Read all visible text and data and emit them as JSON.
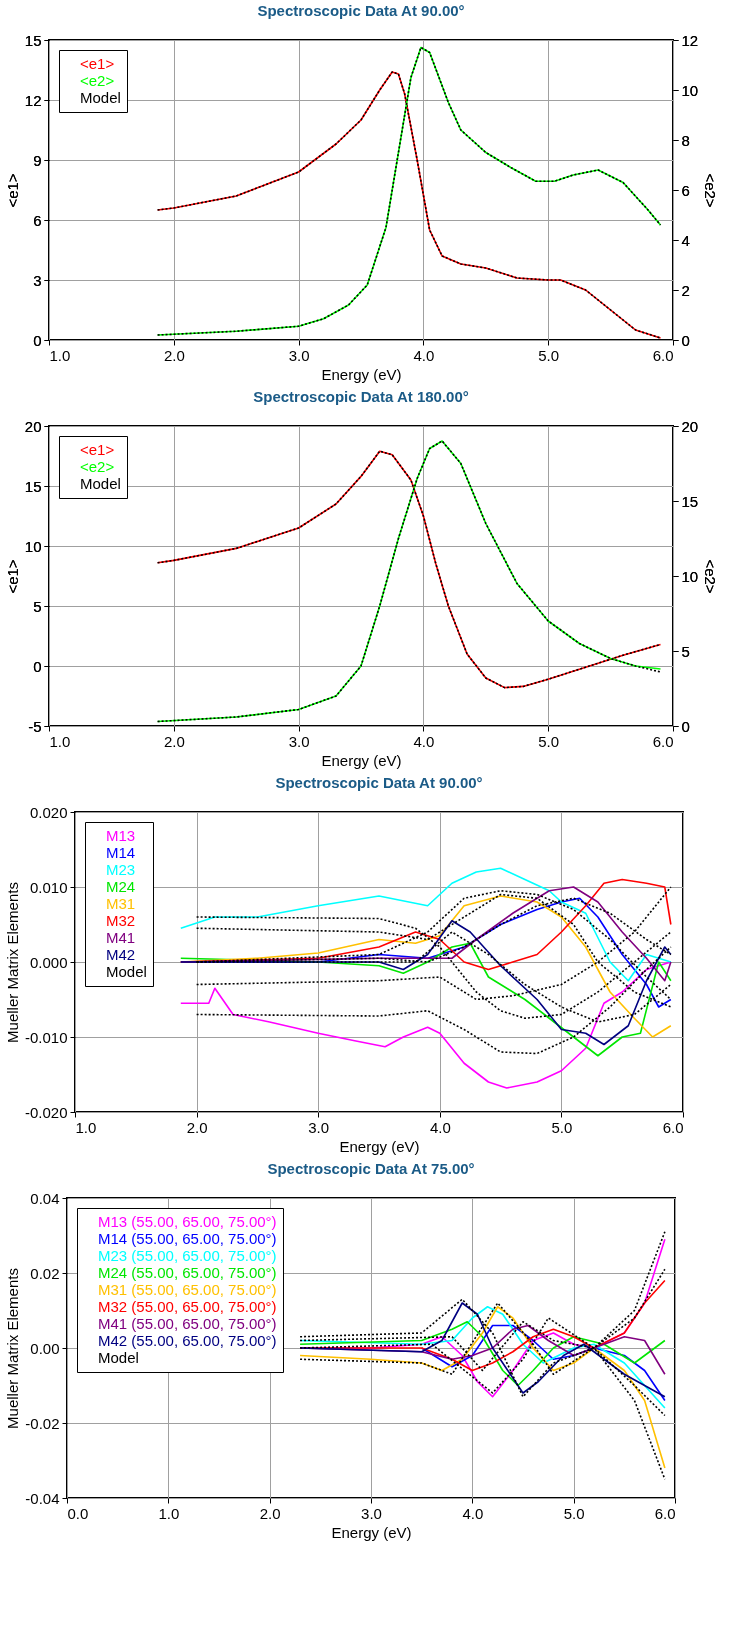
{
  "chart_data": [
    {
      "type": "line",
      "title": "Spectroscopic Data At 90.00°",
      "xlabel": "Energy (eV)",
      "ylabel": "<e1>",
      "y2label": "<e2>",
      "xlim": [
        1,
        6
      ],
      "xticks": [
        {
          "value": 1,
          "label": "1.0"
        },
        {
          "value": 2,
          "label": "2.0"
        },
        {
          "value": 3,
          "label": "3.0"
        },
        {
          "value": 4,
          "label": "4.0"
        },
        {
          "value": 5,
          "label": "5.0"
        },
        {
          "value": 6,
          "label": "6.0"
        }
      ],
      "ylim": [
        0,
        15
      ],
      "yticks": [
        0,
        3,
        6,
        9,
        12,
        15
      ],
      "y2lim": [
        0,
        12
      ],
      "y2ticks": [
        0,
        2,
        4,
        6,
        8,
        10,
        12
      ],
      "grid": true,
      "legend": "top left",
      "series": [
        {
          "name": "<e1>",
          "color": "#ff0000",
          "axis": "y",
          "line_style": "solid",
          "x": [
            1.87,
            2.0,
            2.5,
            3.0,
            3.3,
            3.5,
            3.65,
            3.75,
            3.8,
            3.85,
            3.95,
            4.05,
            4.15,
            4.3,
            4.5,
            4.75,
            5.0,
            5.1,
            5.3,
            5.5,
            5.7,
            5.9
          ],
          "values": [
            6.5,
            6.6,
            7.2,
            8.4,
            9.8,
            11.0,
            12.5,
            13.4,
            13.3,
            12.3,
            9.0,
            5.5,
            4.2,
            3.8,
            3.6,
            3.1,
            3.0,
            3.0,
            2.5,
            1.5,
            0.5,
            0.1
          ]
        },
        {
          "name": "<e2>",
          "color": "#00ff00",
          "axis": "y2",
          "line_style": "solid",
          "x": [
            1.87,
            2.5,
            3.0,
            3.2,
            3.4,
            3.55,
            3.7,
            3.8,
            3.9,
            3.98,
            4.05,
            4.2,
            4.3,
            4.5,
            4.7,
            4.9,
            5.05,
            5.2,
            5.4,
            5.6,
            5.8,
            5.9
          ],
          "values": [
            0.2,
            0.35,
            0.55,
            0.85,
            1.4,
            2.2,
            4.5,
            7.5,
            10.5,
            11.7,
            11.5,
            9.5,
            8.4,
            7.5,
            6.9,
            6.35,
            6.35,
            6.6,
            6.8,
            6.3,
            5.2,
            4.6
          ]
        },
        {
          "name": "Model",
          "color": "#000000",
          "axis": "y",
          "line_style": "dotted",
          "x": [
            1.87,
            2.0,
            2.5,
            3.0,
            3.3,
            3.5,
            3.65,
            3.75,
            3.8,
            3.85,
            3.95,
            4.05,
            4.15,
            4.3,
            4.5,
            4.75,
            5.0,
            5.1,
            5.3,
            5.5,
            5.7,
            5.9
          ],
          "values": [
            6.5,
            6.6,
            7.2,
            8.4,
            9.8,
            11.0,
            12.5,
            13.4,
            13.3,
            12.3,
            9.0,
            5.5,
            4.2,
            3.8,
            3.6,
            3.1,
            3.0,
            3.0,
            2.5,
            1.5,
            0.5,
            0.1
          ]
        },
        {
          "color": "#000000",
          "axis": "y2",
          "line_style": "dotted",
          "x": [
            1.87,
            2.5,
            3.0,
            3.2,
            3.4,
            3.55,
            3.7,
            3.8,
            3.9,
            3.98,
            4.05,
            4.2,
            4.3,
            4.5,
            4.7,
            4.9,
            5.05,
            5.2,
            5.4,
            5.6,
            5.8,
            5.9
          ],
          "values": [
            0.2,
            0.35,
            0.55,
            0.85,
            1.4,
            2.2,
            4.5,
            7.5,
            10.5,
            11.7,
            11.5,
            9.5,
            8.4,
            7.5,
            6.9,
            6.35,
            6.35,
            6.6,
            6.8,
            6.3,
            5.2,
            4.6
          ]
        }
      ]
    },
    {
      "type": "line",
      "title": "Spectroscopic Data At 180.00°",
      "xlabel": "Energy (eV)",
      "ylabel": "<e1>",
      "y2label": "<e2>",
      "xlim": [
        1,
        6
      ],
      "xticks": [
        {
          "value": 1,
          "label": "1.0"
        },
        {
          "value": 2,
          "label": "2.0"
        },
        {
          "value": 3,
          "label": "3.0"
        },
        {
          "value": 4,
          "label": "4.0"
        },
        {
          "value": 5,
          "label": "5.0"
        },
        {
          "value": 6,
          "label": "6.0"
        }
      ],
      "ylim": [
        -5,
        20
      ],
      "yticks": [
        -5,
        0,
        5,
        10,
        15,
        20
      ],
      "y2lim": [
        0,
        20
      ],
      "y2ticks": [
        0,
        5,
        10,
        15,
        20
      ],
      "grid": true,
      "legend": "top left",
      "series": [
        {
          "name": "<e1>",
          "color": "#ff0000",
          "axis": "y",
          "line_style": "solid",
          "x": [
            1.87,
            2.0,
            2.5,
            3.0,
            3.3,
            3.5,
            3.65,
            3.75,
            3.9,
            4.0,
            4.1,
            4.2,
            4.35,
            4.5,
            4.65,
            4.8,
            5.0,
            5.3,
            5.6,
            5.9
          ],
          "values": [
            8.6,
            8.8,
            9.8,
            11.5,
            13.5,
            15.8,
            17.9,
            17.6,
            15.5,
            12.5,
            8.5,
            5.0,
            1.0,
            -1.0,
            -1.8,
            -1.7,
            -1.1,
            -0.1,
            0.9,
            1.8
          ]
        },
        {
          "name": "<e2>",
          "color": "#00ff00",
          "axis": "y2",
          "line_style": "solid",
          "x": [
            1.87,
            2.5,
            3.0,
            3.3,
            3.5,
            3.65,
            3.8,
            3.95,
            4.05,
            4.15,
            4.3,
            4.5,
            4.75,
            5.0,
            5.25,
            5.5,
            5.7,
            5.9
          ],
          "values": [
            0.3,
            0.6,
            1.1,
            2.0,
            4.0,
            8.0,
            12.5,
            16.5,
            18.5,
            19.0,
            17.5,
            13.5,
            9.5,
            7.0,
            5.5,
            4.5,
            4.0,
            3.8
          ]
        },
        {
          "name": "Model",
          "color": "#000000",
          "axis": "y",
          "line_style": "dotted",
          "x": [
            1.87,
            2.0,
            2.5,
            3.0,
            3.3,
            3.5,
            3.65,
            3.75,
            3.9,
            4.0,
            4.1,
            4.2,
            4.35,
            4.5,
            4.65,
            4.8,
            5.0,
            5.3,
            5.6,
            5.9
          ],
          "values": [
            8.6,
            8.8,
            9.8,
            11.5,
            13.5,
            15.8,
            17.9,
            17.6,
            15.5,
            12.5,
            8.5,
            5.0,
            1.0,
            -1.0,
            -1.8,
            -1.7,
            -1.1,
            -0.1,
            0.9,
            1.8
          ]
        },
        {
          "color": "#000000",
          "axis": "y2",
          "line_style": "dotted",
          "x": [
            1.87,
            2.5,
            3.0,
            3.3,
            3.5,
            3.65,
            3.8,
            3.95,
            4.05,
            4.15,
            4.3,
            4.5,
            4.75,
            5.0,
            5.25,
            5.5,
            5.7,
            5.9
          ],
          "values": [
            0.3,
            0.6,
            1.1,
            2.0,
            4.0,
            8.0,
            12.5,
            16.5,
            18.5,
            19.0,
            17.5,
            13.5,
            9.5,
            7.0,
            5.5,
            4.5,
            4.0,
            3.6
          ]
        }
      ]
    },
    {
      "type": "line",
      "title": "Spectroscopic Data At 90.00°",
      "xlabel": "Energy (eV)",
      "ylabel": "Mueller Matrix Elements",
      "xlim": [
        1,
        6
      ],
      "xticks": [
        {
          "value": 1,
          "label": "1.0"
        },
        {
          "value": 2,
          "label": "2.0"
        },
        {
          "value": 3,
          "label": "3.0"
        },
        {
          "value": 4,
          "label": "4.0"
        },
        {
          "value": 5,
          "label": "5.0"
        },
        {
          "value": 6,
          "label": "6.0"
        }
      ],
      "ylim": [
        -0.02,
        0.02
      ],
      "yticks": [
        {
          "value": -0.02,
          "label": "-0.020"
        },
        {
          "value": -0.01,
          "label": "-0.010"
        },
        {
          "value": 0,
          "label": "0.000"
        },
        {
          "value": 0.01,
          "label": "0.010"
        },
        {
          "value": 0.02,
          "label": "0.020"
        }
      ],
      "grid": true,
      "legend": "top left",
      "series": [
        {
          "name": "M13",
          "color": "#ff00ff",
          "line_style": "solid",
          "x": [
            1.87,
            2.1,
            2.15,
            2.3,
            2.6,
            3.0,
            3.3,
            3.55,
            3.7,
            3.9,
            4.0,
            4.2,
            4.4,
            4.55,
            4.8,
            5.0,
            5.2,
            5.35,
            5.5,
            5.7,
            5.9
          ],
          "values": [
            -0.0055,
            -0.0055,
            -0.0035,
            -0.007,
            -0.008,
            -0.0095,
            -0.0105,
            -0.0113,
            -0.01,
            -0.0087,
            -0.0095,
            -0.0135,
            -0.016,
            -0.0168,
            -0.016,
            -0.0145,
            -0.0115,
            -0.0055,
            -0.004,
            -0.001,
            0.0
          ]
        },
        {
          "name": "M14",
          "color": "#0000ff",
          "line_style": "solid",
          "x": [
            1.87,
            3.0,
            3.5,
            3.9,
            4.2,
            4.5,
            4.8,
            5.0,
            5.15,
            5.3,
            5.5,
            5.7,
            5.8,
            5.9
          ],
          "values": [
            0.0,
            0.0,
            0.001,
            0.0005,
            0.002,
            0.005,
            0.007,
            0.008,
            0.0085,
            0.006,
            0.001,
            -0.003,
            -0.006,
            -0.005
          ]
        },
        {
          "name": "M23",
          "color": "#00ffff",
          "line_style": "solid",
          "x": [
            1.87,
            2.15,
            2.5,
            3.0,
            3.5,
            3.9,
            4.1,
            4.3,
            4.5,
            4.7,
            4.9,
            5.0,
            5.2,
            5.4,
            5.55,
            5.7,
            5.9
          ],
          "values": [
            0.0045,
            0.006,
            0.006,
            0.0075,
            0.0088,
            0.0075,
            0.0105,
            0.012,
            0.0125,
            0.011,
            0.0095,
            0.008,
            0.0065,
            0.0,
            -0.0025,
            0.001,
            0.0
          ]
        },
        {
          "name": "M24",
          "color": "#00e600",
          "line_style": "solid",
          "x": [
            1.87,
            3.0,
            3.5,
            3.7,
            3.9,
            4.1,
            4.25,
            4.4,
            4.7,
            4.9,
            5.1,
            5.3,
            5.5,
            5.65,
            5.8,
            5.9
          ],
          "values": [
            0.0005,
            0.0,
            -0.0005,
            -0.0015,
            0.0,
            0.002,
            0.0025,
            -0.002,
            -0.005,
            -0.0075,
            -0.01,
            -0.0125,
            -0.01,
            -0.0095,
            0.0,
            -0.0025
          ]
        },
        {
          "name": "M31",
          "color": "#ffc000",
          "line_style": "solid",
          "x": [
            1.87,
            2.5,
            3.0,
            3.5,
            3.8,
            4.0,
            4.2,
            4.5,
            4.8,
            5.0,
            5.2,
            5.4,
            5.6,
            5.75,
            5.9
          ],
          "values": [
            0.0,
            0.0005,
            0.0012,
            0.003,
            0.0025,
            0.0035,
            0.0075,
            0.0088,
            0.008,
            0.006,
            0.002,
            -0.004,
            -0.0075,
            -0.01,
            -0.0085
          ]
        },
        {
          "name": "M32",
          "color": "#ff0000",
          "line_style": "solid",
          "x": [
            1.87,
            3.0,
            3.5,
            3.8,
            4.0,
            4.2,
            4.4,
            4.6,
            4.8,
            5.0,
            5.2,
            5.35,
            5.5,
            5.7,
            5.85,
            5.9
          ],
          "values": [
            0.0,
            0.0005,
            0.002,
            0.004,
            0.003,
            0.0,
            -0.001,
            0.0,
            0.001,
            0.004,
            0.0075,
            0.0105,
            0.011,
            0.0105,
            0.01,
            0.005
          ]
        },
        {
          "name": "M41",
          "color": "#800080",
          "line_style": "solid",
          "x": [
            1.87,
            3.5,
            3.9,
            4.1,
            4.3,
            4.6,
            4.9,
            5.1,
            5.3,
            5.5,
            5.7,
            5.85,
            5.9
          ],
          "values": [
            0.0,
            0.0005,
            0.0005,
            0.0005,
            0.003,
            0.0065,
            0.0095,
            0.01,
            0.008,
            0.004,
            0.0005,
            -0.0025,
            0.0
          ]
        },
        {
          "name": "M42",
          "color": "#000080",
          "line_style": "solid",
          "x": [
            1.87,
            3.5,
            3.7,
            3.9,
            4.1,
            4.25,
            4.5,
            4.8,
            5.0,
            5.2,
            5.35,
            5.55,
            5.7,
            5.85,
            5.9
          ],
          "values": [
            0.0,
            0.0,
            -0.001,
            0.001,
            0.0055,
            0.004,
            -0.0005,
            -0.005,
            -0.009,
            -0.0095,
            -0.011,
            -0.0085,
            -0.0025,
            0.002,
            0.001
          ]
        },
        {
          "name": "Model",
          "color": "#000000",
          "line_style": "dotted",
          "x": [
            2.0,
            3.5,
            3.8,
            4.0,
            4.3,
            4.5,
            4.7,
            5.0,
            5.3,
            5.6,
            5.9
          ],
          "values": [
            0.006,
            0.0058,
            0.0045,
            0.002,
            -0.004,
            -0.0065,
            -0.0075,
            -0.007,
            -0.004,
            0.0,
            0.004
          ]
        },
        {
          "color": "#000000",
          "line_style": "dotted",
          "x": [
            2.0,
            3.5,
            3.9,
            4.2,
            4.5,
            4.8,
            5.1,
            5.4,
            5.7,
            5.9
          ],
          "values": [
            -0.007,
            -0.0072,
            -0.0065,
            -0.009,
            -0.012,
            -0.0122,
            -0.01,
            -0.006,
            -0.001,
            0.002
          ]
        },
        {
          "color": "#000000",
          "line_style": "dotted",
          "x": [
            2.0,
            3.5,
            4.0,
            4.3,
            4.6,
            5.0,
            5.3,
            5.6,
            5.9
          ],
          "values": [
            -0.003,
            -0.0025,
            -0.002,
            -0.005,
            -0.0045,
            -0.003,
            0.0,
            0.004,
            0.01
          ]
        },
        {
          "color": "#000000",
          "line_style": "dotted",
          "x": [
            2.0,
            3.5,
            3.9,
            4.2,
            4.5,
            4.8,
            5.1,
            5.3,
            5.6,
            5.9
          ],
          "values": [
            0.0045,
            0.004,
            0.003,
            0.006,
            0.009,
            0.0085,
            0.005,
            0.0,
            -0.004,
            -0.006
          ]
        },
        {
          "color": "#000000",
          "line_style": "dotted",
          "x": [
            2.0,
            3.5,
            3.9,
            4.2,
            4.5,
            4.8,
            5.1,
            5.4,
            5.7,
            5.9
          ],
          "values": [
            0.0,
            0.001,
            0.004,
            0.0085,
            0.0095,
            0.009,
            0.007,
            0.003,
            -0.002,
            -0.005
          ]
        },
        {
          "color": "#000000",
          "line_style": "dotted",
          "x": [
            2.0,
            3.5,
            3.9,
            4.2,
            4.5,
            4.8,
            5.1,
            5.4,
            5.7,
            5.9
          ],
          "values": [
            0.0,
            0.0005,
            0.0,
            0.002,
            0.005,
            0.0075,
            0.0085,
            0.0065,
            0.003,
            0.001
          ]
        },
        {
          "color": "#000000",
          "line_style": "dotted",
          "x": [
            2.0,
            3.8,
            4.1,
            4.4,
            4.7,
            5.0,
            5.3,
            5.6,
            5.9
          ],
          "values": [
            0.0,
            0.0,
            0.004,
            0.001,
            -0.003,
            -0.006,
            -0.008,
            -0.007,
            -0.003
          ]
        }
      ]
    },
    {
      "type": "line",
      "title": "Spectroscopic Data At 75.00°",
      "xlabel": "Energy (eV)",
      "ylabel": "Mueller Matrix Elements",
      "xlim": [
        0,
        6
      ],
      "xticks": [
        {
          "value": 0,
          "label": "0.0"
        },
        {
          "value": 1,
          "label": "1.0"
        },
        {
          "value": 2,
          "label": "2.0"
        },
        {
          "value": 3,
          "label": "3.0"
        },
        {
          "value": 4,
          "label": "4.0"
        },
        {
          "value": 5,
          "label": "5.0"
        },
        {
          "value": 6,
          "label": "6.0"
        }
      ],
      "ylim": [
        -0.04,
        0.04
      ],
      "yticks": [
        {
          "value": -0.04,
          "label": "-0.04"
        },
        {
          "value": -0.02,
          "label": "-0.02"
        },
        {
          "value": 0,
          "label": "0.00"
        },
        {
          "value": 0.02,
          "label": "0.02"
        },
        {
          "value": 0.04,
          "label": "0.04"
        }
      ],
      "grid": true,
      "legend": "top left",
      "series": [
        {
          "name": "M13 (55.00, 65.00, 75.00°)",
          "color": "#ff00ff",
          "line_style": "solid",
          "x": [
            2.3,
            3.0,
            3.5,
            3.7,
            3.9,
            4.05,
            4.2,
            4.4,
            4.6,
            4.8,
            5.0,
            5.2,
            5.5,
            5.7,
            5.9
          ],
          "values": [
            0.0,
            0.0,
            0.001,
            0.003,
            -0.002,
            -0.009,
            -0.013,
            -0.006,
            0.002,
            0.004,
            0.001,
            0.0,
            0.004,
            0.012,
            0.029
          ]
        },
        {
          "name": "M14 (55.00, 65.00, 75.00°)",
          "color": "#0000ff",
          "line_style": "solid",
          "x": [
            3.5,
            3.8,
            4.0,
            4.2,
            4.4,
            4.6,
            4.8,
            5.0,
            5.2,
            5.5,
            5.7,
            5.9
          ],
          "values": [
            0.0,
            -0.005,
            -0.002,
            0.006,
            0.006,
            0.002,
            -0.003,
            -0.002,
            0.0,
            -0.002,
            -0.006,
            -0.014
          ]
        },
        {
          "name": "M23 (55.00, 65.00, 75.00°)",
          "color": "#00ffff",
          "line_style": "solid",
          "x": [
            2.3,
            3.5,
            3.8,
            4.0,
            4.15,
            4.3,
            4.5,
            4.7,
            5.0,
            5.2,
            5.5,
            5.7,
            5.9
          ],
          "values": [
            0.002,
            0.001,
            0.002,
            0.008,
            0.011,
            0.009,
            0.001,
            -0.004,
            0.0,
            0.001,
            -0.004,
            -0.01,
            -0.016
          ]
        },
        {
          "name": "M24 (55.00, 65.00, 75.00°)",
          "color": "#00e600",
          "line_style": "solid",
          "x": [
            2.3,
            3.5,
            3.8,
            3.95,
            4.1,
            4.3,
            4.45,
            4.6,
            4.8,
            5.0,
            5.3,
            5.6,
            5.9
          ],
          "values": [
            0.001,
            0.002,
            0.005,
            0.007,
            0.003,
            -0.006,
            -0.01,
            -0.006,
            0.0,
            0.003,
            0.001,
            -0.004,
            0.002
          ]
        },
        {
          "name": "M31 (55.00, 65.00, 75.00°)",
          "color": "#ffc000",
          "line_style": "solid",
          "x": [
            2.3,
            3.0,
            3.5,
            3.7,
            3.9,
            4.1,
            4.25,
            4.4,
            4.6,
            4.8,
            5.0,
            5.2,
            5.5,
            5.7,
            5.9
          ],
          "values": [
            -0.002,
            -0.003,
            -0.004,
            -0.006,
            -0.003,
            0.004,
            0.011,
            0.008,
            0.0,
            -0.006,
            -0.004,
            0.0,
            -0.006,
            -0.014,
            -0.032
          ]
        },
        {
          "name": "M32 (55.00, 65.00, 75.00°)",
          "color": "#ff0000",
          "line_style": "solid",
          "x": [
            2.3,
            3.5,
            3.8,
            4.0,
            4.2,
            4.4,
            4.6,
            4.8,
            5.0,
            5.2,
            5.5,
            5.7,
            5.9
          ],
          "values": [
            0.0,
            0.0,
            -0.003,
            -0.006,
            -0.004,
            -0.001,
            0.003,
            0.005,
            0.003,
            0.0,
            0.004,
            0.012,
            0.018
          ]
        },
        {
          "name": "M41 (55.00, 65.00, 75.00°)",
          "color": "#800080",
          "line_style": "solid",
          "x": [
            2.3,
            3.5,
            3.8,
            4.0,
            4.2,
            4.4,
            4.55,
            4.75,
            5.0,
            5.2,
            5.5,
            5.7,
            5.9
          ],
          "values": [
            0.0,
            -0.001,
            -0.003,
            -0.002,
            0.0,
            0.005,
            0.006,
            0.002,
            -0.002,
            0.0,
            0.003,
            0.002,
            -0.007
          ]
        },
        {
          "name": "M42 (55.00, 65.00, 75.00°)",
          "color": "#000080",
          "line_style": "solid",
          "x": [
            2.3,
            3.5,
            3.7,
            3.9,
            4.05,
            4.2,
            4.35,
            4.5,
            4.65,
            4.9,
            5.1,
            5.3,
            5.5,
            5.7,
            5.9
          ],
          "values": [
            0.0,
            -0.001,
            0.002,
            0.012,
            0.009,
            0.0,
            -0.006,
            -0.012,
            -0.009,
            -0.002,
            0.001,
            -0.003,
            -0.007,
            -0.01,
            -0.013
          ]
        },
        {
          "name": "Model",
          "color": "#000000",
          "line_style": "dotted",
          "x": [
            2.3,
            3.5,
            3.9,
            4.2,
            4.5,
            4.8,
            5.2,
            5.6,
            5.9
          ],
          "values": [
            0.003,
            0.004,
            0.013,
            0.004,
            -0.013,
            -0.004,
            0.0,
            -0.01,
            -0.018
          ]
        },
        {
          "color": "#000000",
          "line_style": "dotted",
          "x": [
            2.3,
            3.5,
            3.8,
            4.25,
            4.6,
            4.8,
            5.2,
            5.6,
            5.9
          ],
          "values": [
            -0.003,
            -0.004,
            -0.007,
            0.012,
            0.001,
            -0.007,
            0.0,
            -0.014,
            -0.035
          ]
        },
        {
          "color": "#000000",
          "line_style": "dotted",
          "x": [
            2.3,
            3.6,
            4.2,
            4.5,
            4.75,
            5.2,
            5.6,
            5.9
          ],
          "values": [
            0.0,
            0.001,
            -0.012,
            -0.003,
            0.008,
            0.0,
            0.01,
            0.031
          ]
        },
        {
          "color": "#000000",
          "line_style": "dotted",
          "x": [
            2.3,
            3.8,
            4.1,
            4.5,
            4.8,
            5.2,
            5.6,
            5.9
          ],
          "values": [
            0.002,
            0.003,
            -0.006,
            0.007,
            0.002,
            0.0,
            0.008,
            0.021
          ]
        }
      ]
    }
  ]
}
